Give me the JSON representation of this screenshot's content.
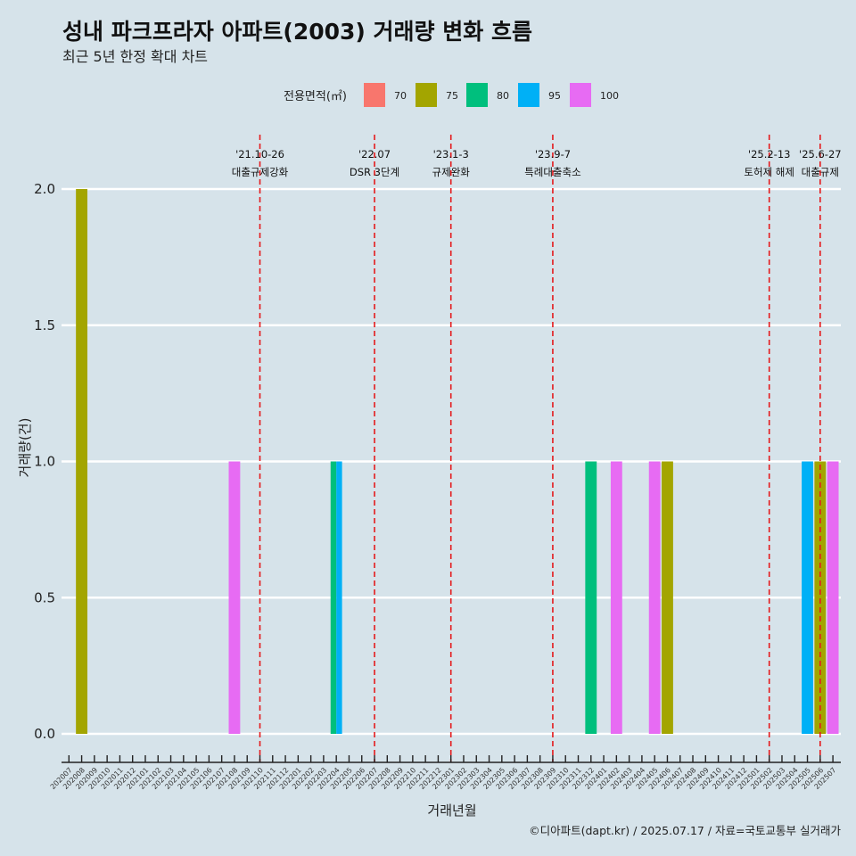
{
  "chart_data": {
    "type": "bar",
    "title": "성내 파크프라자 아파트(2003) 거래량 변화 흐름",
    "subtitle": "최근 5년 한정 확대 차트",
    "xlabel": "거래년월",
    "ylabel": "거래량(건)",
    "ylim": [
      0,
      2
    ],
    "yticks": [
      0,
      0.5,
      1,
      1.5,
      2
    ],
    "ytick_labels": [
      "0.0",
      "0.5",
      "1.0",
      "1.5",
      "2.0"
    ],
    "grid": "horizontal",
    "legend": {
      "title": "전용면적(㎡)",
      "position": "top"
    },
    "categories": [
      "202007",
      "202008",
      "202009",
      "202010",
      "202011",
      "202012",
      "202101",
      "202102",
      "202103",
      "202104",
      "202105",
      "202106",
      "202107",
      "202108",
      "202109",
      "202110",
      "202111",
      "202112",
      "202201",
      "202202",
      "202203",
      "202204",
      "202205",
      "202206",
      "202207",
      "202208",
      "202209",
      "202210",
      "202211",
      "202212",
      "202301",
      "202302",
      "202303",
      "202304",
      "202305",
      "202306",
      "202307",
      "202308",
      "202309",
      "202310",
      "202311",
      "202312",
      "202401",
      "202402",
      "202403",
      "202404",
      "202405",
      "202406",
      "202407",
      "202408",
      "202409",
      "202410",
      "202411",
      "202412",
      "202501",
      "202502",
      "202503",
      "202504",
      "202505",
      "202506",
      "202507"
    ],
    "series": [
      {
        "name": "70",
        "color": "#F8766D",
        "values": [
          0,
          0,
          0,
          0,
          0,
          0,
          0,
          0,
          0,
          0,
          0,
          0,
          0,
          0,
          0,
          0,
          0,
          0,
          0,
          0,
          0,
          0,
          0,
          0,
          0,
          0,
          0,
          0,
          0,
          0,
          0,
          0,
          0,
          0,
          0,
          0,
          0,
          0,
          0,
          0,
          0,
          0,
          0,
          0,
          0,
          0,
          0,
          0,
          0,
          0,
          0,
          0,
          0,
          0,
          0,
          0,
          0,
          0,
          0,
          0,
          0
        ]
      },
      {
        "name": "75",
        "color": "#A3A500",
        "values": [
          0,
          2,
          0,
          0,
          0,
          0,
          0,
          0,
          0,
          0,
          0,
          0,
          0,
          0,
          0,
          0,
          0,
          0,
          0,
          0,
          0,
          0,
          0,
          0,
          0,
          0,
          0,
          0,
          0,
          0,
          0,
          0,
          0,
          0,
          0,
          0,
          0,
          0,
          0,
          0,
          0,
          0,
          0,
          0,
          0,
          0,
          0,
          1,
          0,
          0,
          0,
          0,
          0,
          0,
          0,
          0,
          0,
          0,
          0,
          1,
          0
        ]
      },
      {
        "name": "80",
        "color": "#00BF7D",
        "values": [
          0,
          0,
          0,
          0,
          0,
          0,
          0,
          0,
          0,
          0,
          0,
          0,
          0,
          0,
          0,
          0,
          0,
          0,
          0,
          0,
          0,
          1,
          0,
          0,
          0,
          0,
          0,
          0,
          0,
          0,
          0,
          0,
          0,
          0,
          0,
          0,
          0,
          0,
          0,
          0,
          0,
          1,
          0,
          0,
          0,
          0,
          0,
          0,
          0,
          0,
          0,
          0,
          0,
          0,
          0,
          0,
          0,
          0,
          0,
          0,
          0
        ]
      },
      {
        "name": "95",
        "color": "#00B0F6",
        "values": [
          0,
          0,
          0,
          0,
          0,
          0,
          0,
          0,
          0,
          0,
          0,
          0,
          0,
          0,
          0,
          0,
          0,
          0,
          0,
          0,
          0,
          1,
          0,
          0,
          0,
          0,
          0,
          0,
          0,
          0,
          0,
          0,
          0,
          0,
          0,
          0,
          0,
          0,
          0,
          0,
          0,
          0,
          0,
          0,
          0,
          0,
          0,
          0,
          0,
          0,
          0,
          0,
          0,
          0,
          0,
          0,
          0,
          0,
          1,
          0,
          0
        ]
      },
      {
        "name": "100",
        "color": "#E76BF3",
        "values": [
          0,
          0,
          0,
          0,
          0,
          0,
          0,
          0,
          0,
          0,
          0,
          0,
          0,
          1,
          0,
          0,
          0,
          0,
          0,
          0,
          0,
          0,
          0,
          0,
          0,
          0,
          0,
          0,
          0,
          0,
          0,
          0,
          0,
          0,
          0,
          0,
          0,
          0,
          0,
          0,
          0,
          0,
          0,
          1,
          0,
          0,
          1,
          0,
          0,
          0,
          0,
          0,
          0,
          0,
          0,
          0,
          0,
          0,
          0,
          0,
          1
        ]
      }
    ],
    "events": [
      {
        "month": "202110",
        "date": "'21.10-26",
        "label": "대출규제강화"
      },
      {
        "month": "202207",
        "date": "'22.07",
        "label": "DSR 3단계"
      },
      {
        "month": "202301",
        "date": "'23.1-3",
        "label": "규제완화"
      },
      {
        "month": "202309",
        "date": "'23.9-7",
        "label": "특례대출축소"
      },
      {
        "month": "202502",
        "date": "'25.2-13",
        "label": "토허제 해제"
      },
      {
        "month": "202506",
        "date": "'25.6-27",
        "label": "대출규제"
      }
    ],
    "event_line_color": "#E41A1C",
    "caption": "©디아파트(dapt.kr) / 2025.07.17 / 자료=국토교통부 실거래가"
  }
}
